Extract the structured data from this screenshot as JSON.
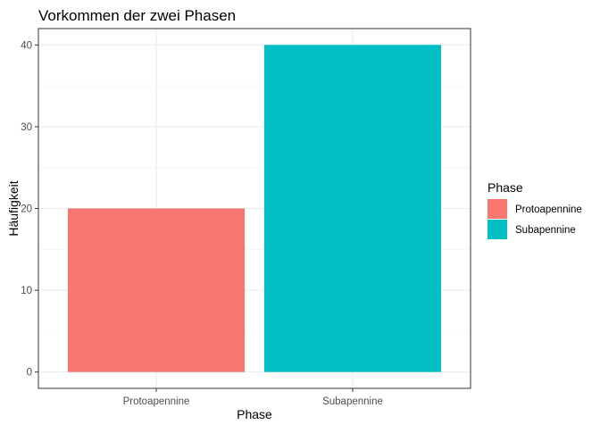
{
  "chart_data": {
    "type": "bar",
    "title": "Vorkommen der zwei Phasen",
    "xlabel": "Phase",
    "ylabel": "Häufigkeit",
    "categories": [
      "Protoapennine",
      "Subapennine"
    ],
    "values": [
      20,
      40
    ],
    "colors": [
      "#F8766D",
      "#00BFC4"
    ],
    "ylim": [
      -2,
      42
    ],
    "yticks": [
      0,
      10,
      20,
      30,
      40
    ],
    "grid": true,
    "legend": {
      "title": "Phase",
      "position": "right",
      "entries": [
        "Protoapennine",
        "Subapennine"
      ]
    }
  }
}
